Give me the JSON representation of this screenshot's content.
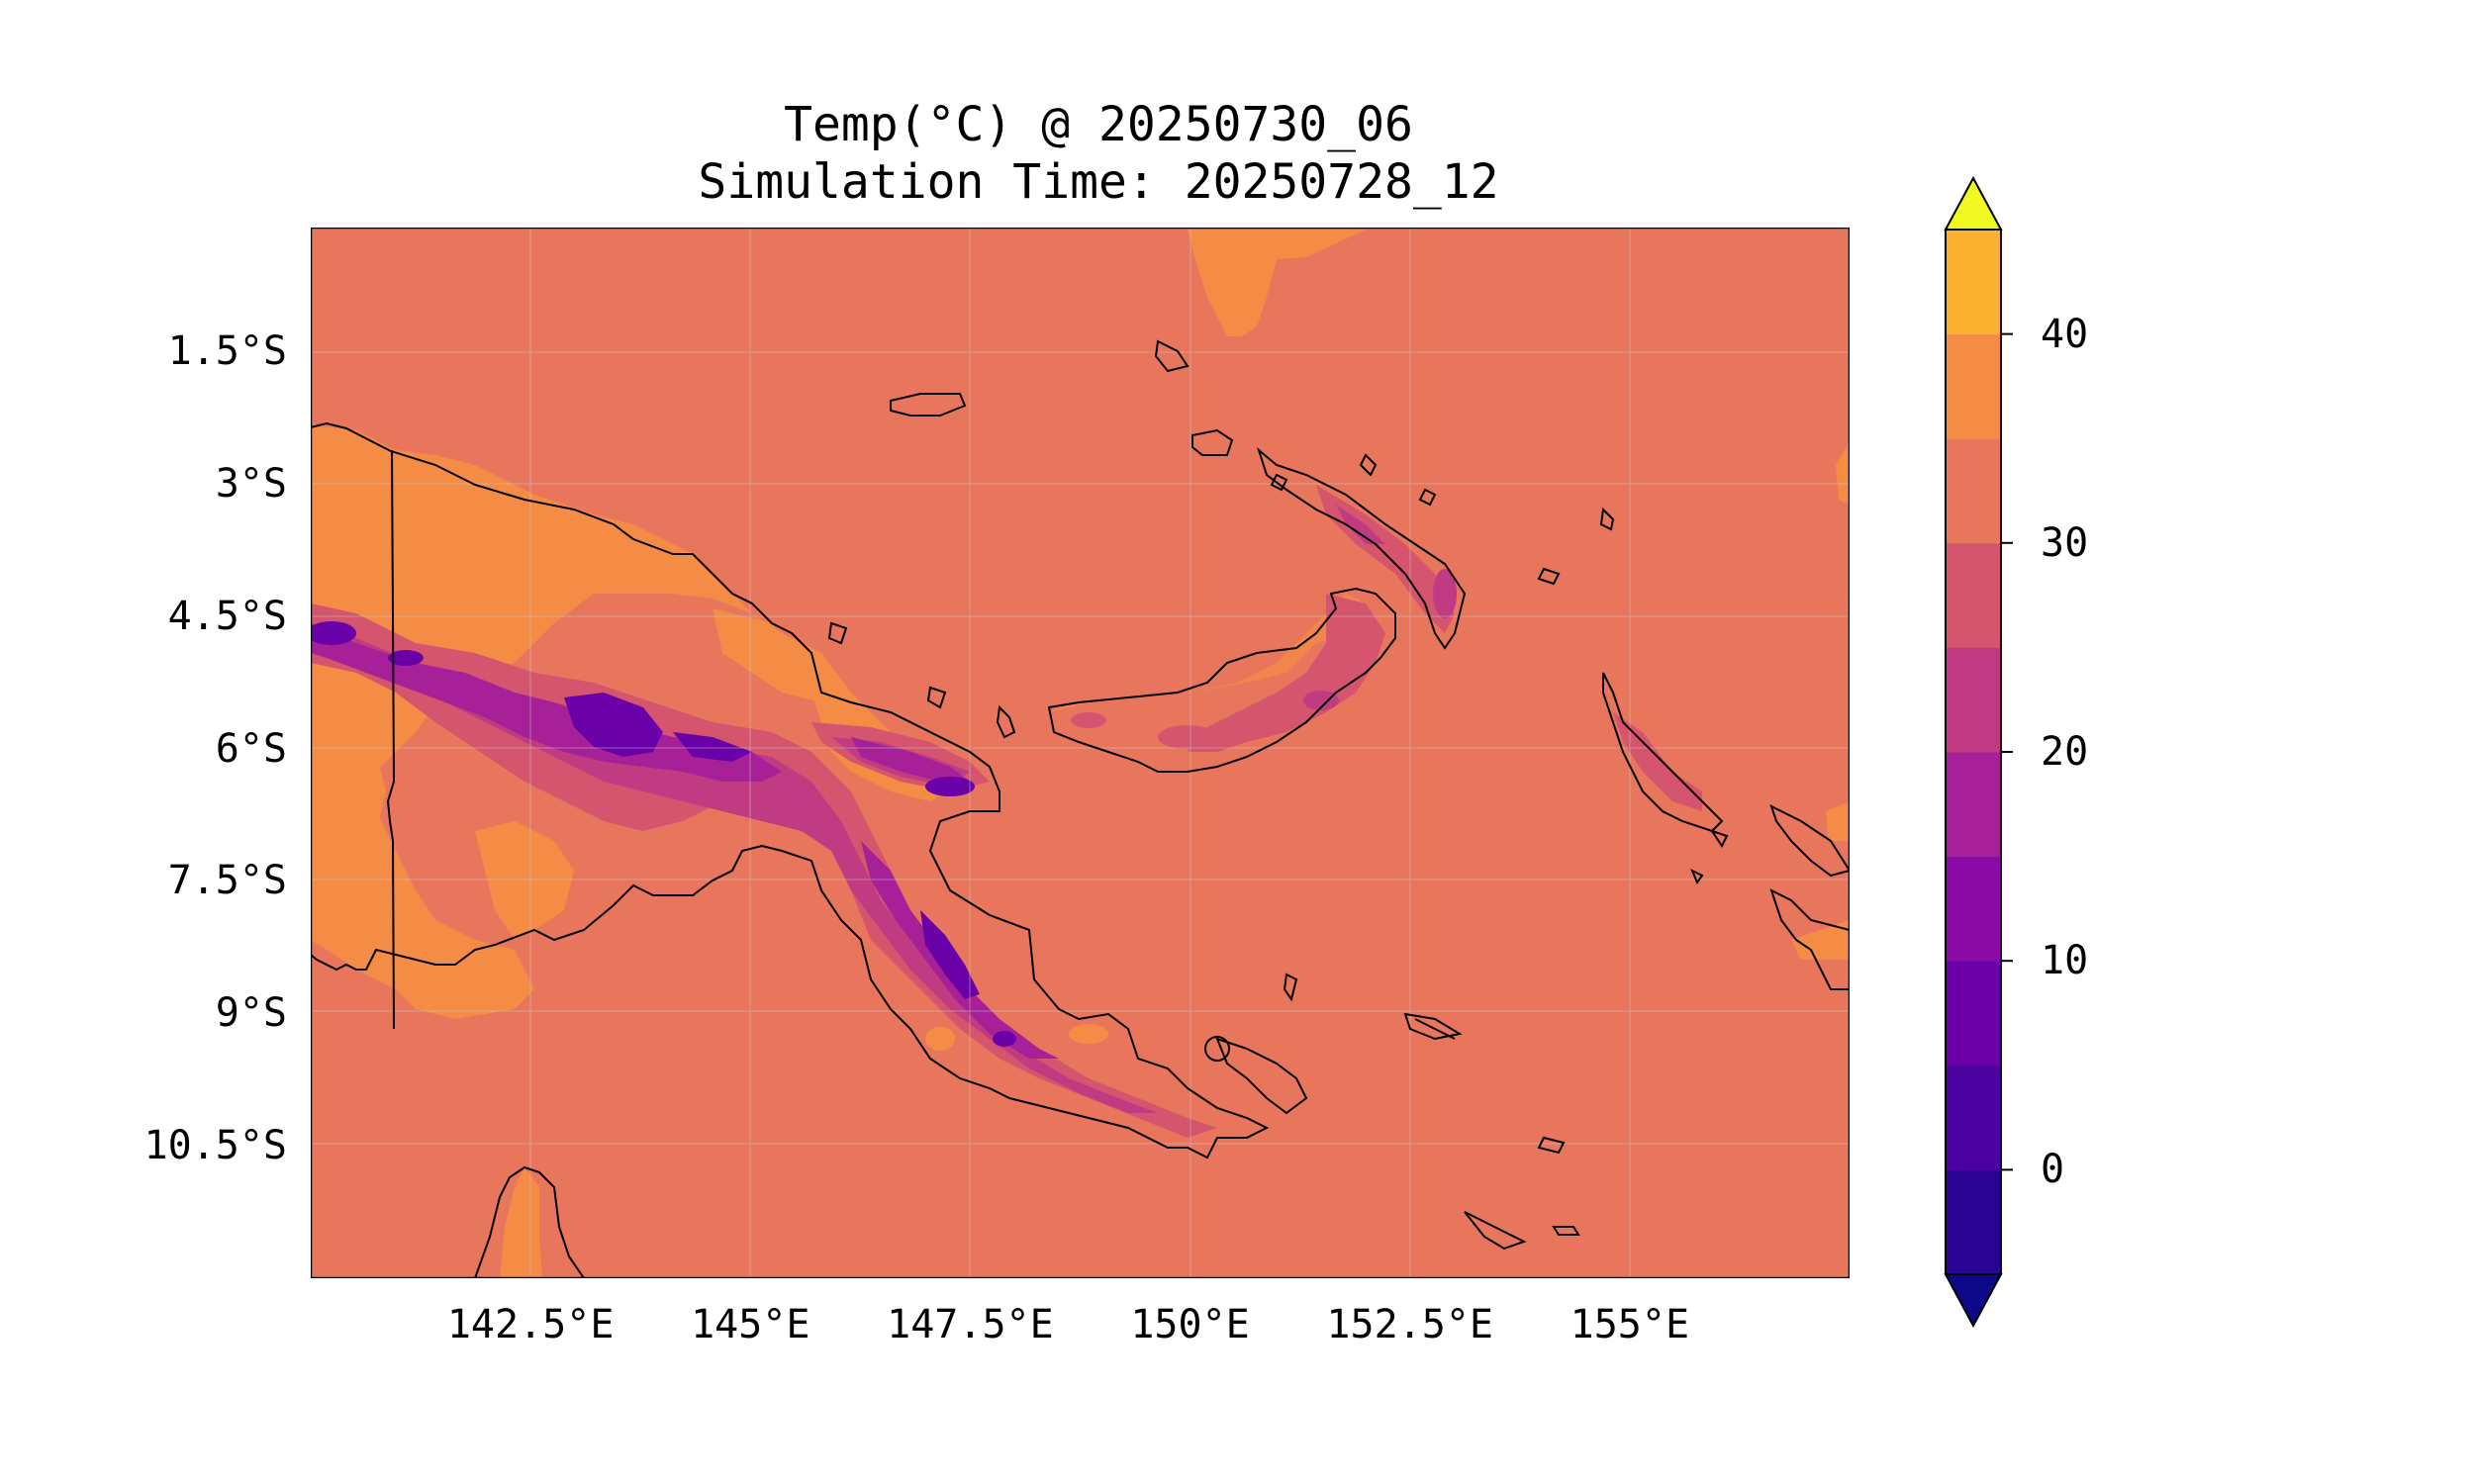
{
  "title": {
    "line1": "Temp(°C) @ 20250730_06",
    "line2": "Simulation Time: 20250728_12"
  },
  "map": {
    "lon_range": [
      140.0,
      157.5
    ],
    "lat_range": [
      -12.0,
      -0.1
    ],
    "lat_ticks": [
      "1.5°S",
      "3°S",
      "4.5°S",
      "6°S",
      "7.5°S",
      "9°S",
      "10.5°S"
    ],
    "lat_tick_values": [
      -1.5,
      -3.0,
      -4.5,
      -6.0,
      -7.5,
      -9.0,
      -10.5
    ],
    "lon_ticks": [
      "142.5°E",
      "145°E",
      "147.5°E",
      "150°E",
      "152.5°E",
      "155°E"
    ],
    "lon_tick_values": [
      142.5,
      145.0,
      147.5,
      150.0,
      152.5,
      155.0
    ],
    "gridlines": true,
    "features": [
      "coastlines",
      "borders"
    ]
  },
  "colorbar": {
    "ticks": [
      "0",
      "10",
      "20",
      "30",
      "40"
    ],
    "tick_values": [
      0,
      10,
      20,
      30,
      40
    ],
    "range": [
      -5,
      45
    ],
    "levels": [
      -5,
      0,
      5,
      10,
      15,
      20,
      25,
      30,
      35,
      40,
      45
    ],
    "extend": "both",
    "colormap": "plasma",
    "colors": [
      "#0d0887",
      "#2a0593",
      "#4c02a1",
      "#6a00a8",
      "#8b0aa5",
      "#a62098",
      "#c13b82",
      "#d5546e",
      "#e8765c",
      "#f58c46",
      "#fdb130",
      "#f0f921"
    ]
  },
  "fields": {
    "ocean_color": "#e8765c",
    "warm_land_color": "#f58c46",
    "mild_color": "#d5546e",
    "cool_color": "#c13b82",
    "cold_color": "#a62098",
    "coldest_color": "#6a00a8"
  }
}
